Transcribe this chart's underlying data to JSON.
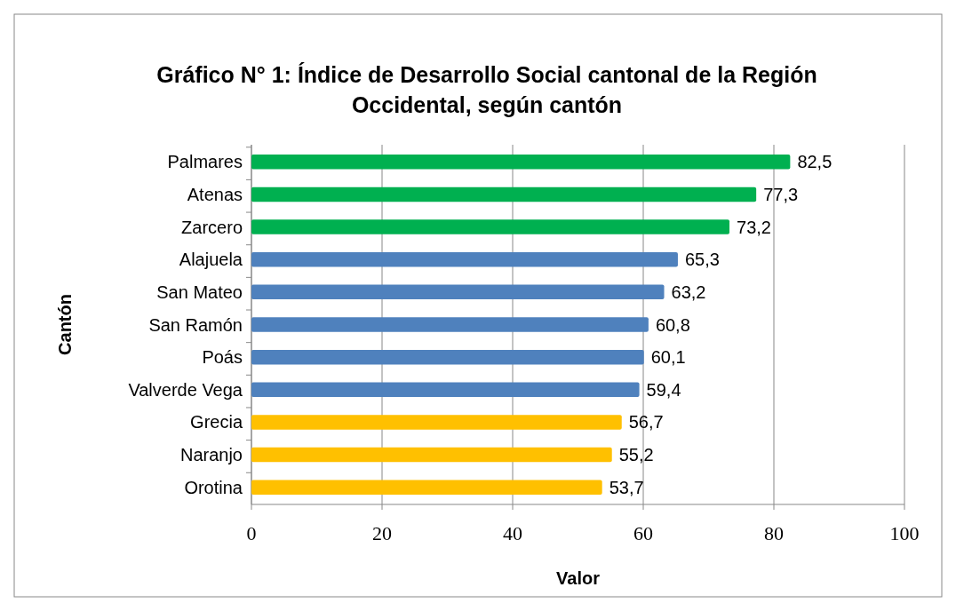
{
  "chart_data": {
    "type": "bar",
    "orientation": "horizontal",
    "title": "Gráfico N° 1: Índice de Desarrollo Social cantonal de la Región Occidental, según cantón",
    "xlabel": "Valor",
    "ylabel": "Cantón",
    "categories": [
      "Palmares",
      "Atenas",
      "Zarcero",
      "Alajuela",
      "San Mateo",
      "San Ramón",
      "Poás",
      "Valverde Vega",
      "Grecia",
      "Naranjo",
      "Orotina"
    ],
    "values": [
      82.5,
      77.3,
      73.2,
      65.3,
      63.2,
      60.8,
      60.1,
      59.4,
      56.7,
      55.2,
      53.7
    ],
    "value_labels": [
      "82,5",
      "77,3",
      "73,2",
      "65,3",
      "63,2",
      "60,8",
      "60,1",
      "59,4",
      "56,7",
      "55,2",
      "53,7"
    ],
    "colors": [
      "#00b050",
      "#00b050",
      "#00b050",
      "#4f81bd",
      "#4f81bd",
      "#4f81bd",
      "#4f81bd",
      "#4f81bd",
      "#ffc000",
      "#ffc000",
      "#ffc000"
    ],
    "xlim": [
      0,
      100
    ],
    "xticks": [
      0,
      20,
      40,
      60,
      80,
      100
    ],
    "grid": "x"
  }
}
